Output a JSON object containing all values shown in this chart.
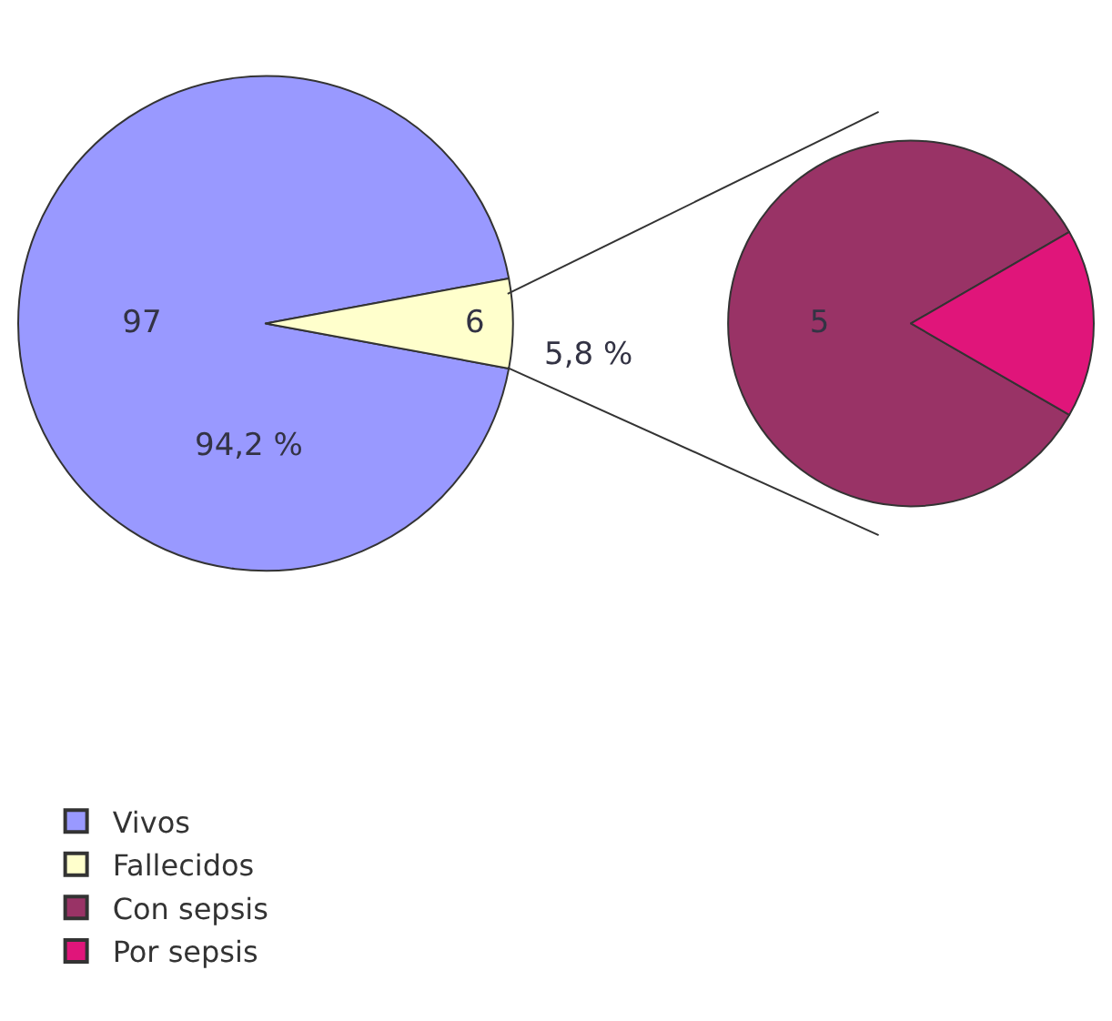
{
  "chart_data": [
    {
      "type": "pie",
      "categories": [
        "Vivos",
        "Fallecidos"
      ],
      "values": [
        97,
        6
      ],
      "colors": [
        "#9999ff",
        "#ffffcc"
      ],
      "value_labels": [
        "97",
        "6"
      ],
      "annotations": [
        "94,2 %",
        "5,8 %"
      ],
      "legend": "bottom left"
    },
    {
      "type": "pie",
      "categories": [
        "Con sepsis",
        "Por sepsis"
      ],
      "values": [
        5,
        1
      ],
      "colors": [
        "#993366",
        "#e0157a"
      ],
      "value_labels": [
        "5",
        null
      ],
      "legend": "bottom left"
    }
  ]
}
